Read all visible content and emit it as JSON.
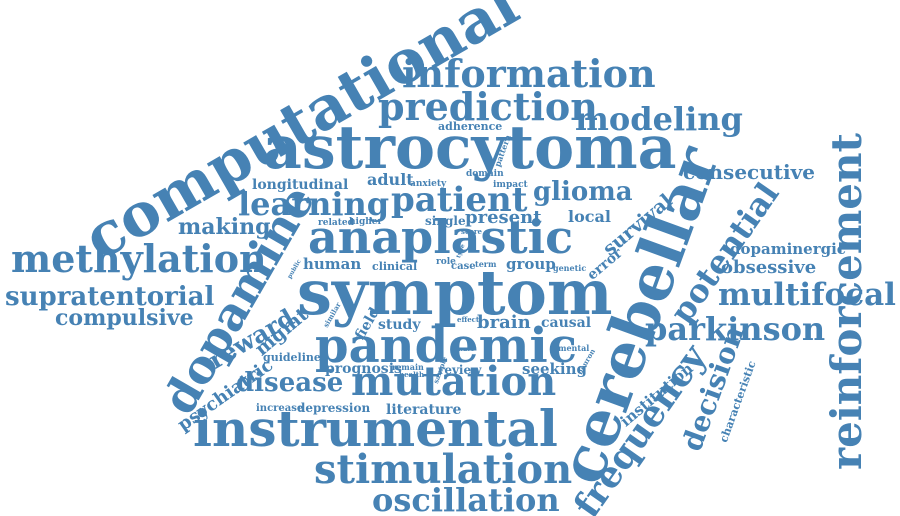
{
  "cloud": {
    "word_color": "#4682b4",
    "background": "#ffffff",
    "words": {
      "computational": "computational",
      "information": "information",
      "prediction": "prediction",
      "modeling": "modeling",
      "astrocytoma": "astrocytoma",
      "adherence": "adherence",
      "domain": "domain",
      "pattern": "pattern",
      "consecutive": "consecutive",
      "reinforcement": "reinforcement",
      "longitudinal": "longitudinal",
      "adult": "adult",
      "anxiety": "anxiety",
      "impact": "impact",
      "learning": "learning",
      "patient": "patient",
      "glioma": "glioma",
      "cerebellar": "cerebellar",
      "related": "related",
      "higher": "higher",
      "single": "single",
      "present": "present",
      "local": "local",
      "survival": "survival",
      "potential": "potential",
      "making": "making",
      "score": "score",
      "anaplastic": "anaplastic",
      "error": "error",
      "methylation": "methylation",
      "dopamine": "dopamine",
      "dopaminergic": "dopaminergic",
      "public": "public",
      "human": "human",
      "clinical": "clinical",
      "role": "role",
      "case": "case",
      "term": "term",
      "type": "type",
      "group": "group",
      "genetic": "genetic",
      "obsessive": "obsessive",
      "symptom": "symptom",
      "supratentorial": "supratentorial",
      "multifocal": "multifocal",
      "reward": "reward",
      "mgmt": "mgmt",
      "similar": "similar",
      "field": "field",
      "compulsive": "compulsive",
      "effect": "effect",
      "brain": "brain",
      "causal": "causal",
      "parkinson": "parkinson",
      "study": "study",
      "pandemic": "pandemic",
      "mental": "mental",
      "neuron": "neuron",
      "guideline": "guideline",
      "wave": "wave",
      "psychiatric": "psychiatric",
      "decision": "decision",
      "characteristic": "characteristic",
      "prognosis": "prognosis",
      "remain": "remain",
      "health": "health",
      "sample": "sample",
      "review": "review",
      "seeking": "seeking",
      "institution": "institution",
      "disease": "disease",
      "mutation": "mutation",
      "frequency": "frequency",
      "increase": "increase",
      "depression": "depression",
      "literature": "literature",
      "instrumental": "instrumental",
      "stimulation": "stimulation",
      "oscillation": "oscillation"
    }
  }
}
